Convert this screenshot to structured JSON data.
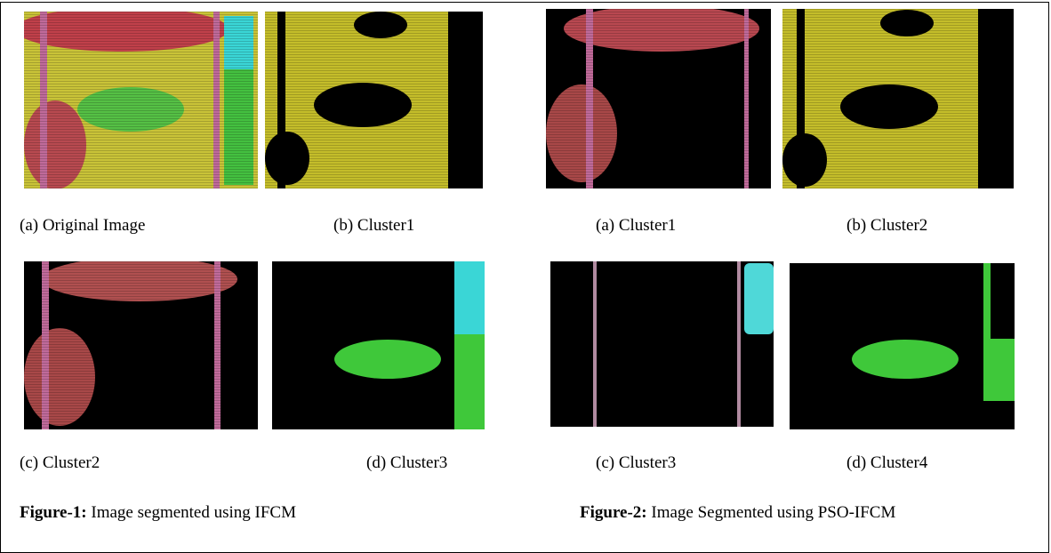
{
  "figures": [
    {
      "panels": [
        "(a) Original Image",
        "(b) Cluster1",
        "(c) Cluster2",
        "(d) Cluster3"
      ],
      "caption": {
        "label": "Figure-1:",
        "text": "Image segmented using IFCM"
      }
    },
    {
      "panels": [
        "(a) Cluster1",
        "(b) Cluster2",
        "(c) Cluster3",
        "(d) Cluster4"
      ],
      "caption": {
        "label": "Figure-2:",
        "text": "Image Segmented using PSO-IFCM"
      }
    }
  ]
}
